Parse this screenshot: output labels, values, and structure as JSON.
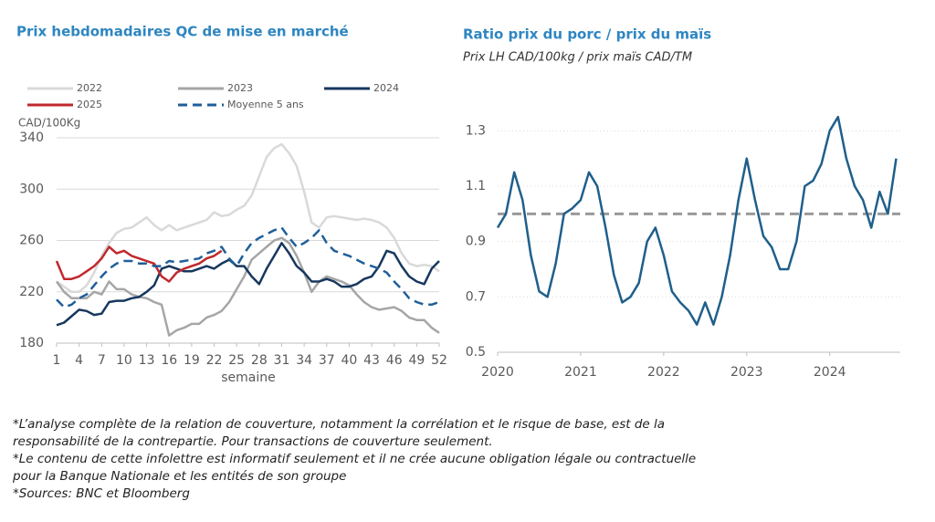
{
  "chart_data": [
    {
      "type": "line",
      "title": "Prix hebdomadaires QC de mise en marché",
      "y_label": "CAD/100Kg",
      "x_label": "semaine",
      "x": [
        1,
        2,
        3,
        4,
        5,
        6,
        7,
        8,
        9,
        10,
        11,
        12,
        13,
        14,
        15,
        16,
        17,
        18,
        19,
        20,
        21,
        22,
        23,
        24,
        25,
        26,
        27,
        28,
        29,
        30,
        31,
        32,
        33,
        34,
        35,
        36,
        37,
        38,
        39,
        40,
        41,
        42,
        43,
        44,
        45,
        46,
        47,
        48,
        49,
        50,
        51,
        52
      ],
      "xlim": [
        1,
        52
      ],
      "xticks": [
        1,
        4,
        7,
        10,
        13,
        16,
        19,
        22,
        25,
        28,
        31,
        34,
        37,
        40,
        43,
        46,
        49,
        52
      ],
      "ylim": [
        180,
        340
      ],
      "yticks": [
        180,
        220,
        260,
        300,
        340
      ],
      "grid": true,
      "series": [
        {
          "name": "2022",
          "color": "#d9d9d9",
          "dashed": false,
          "values": [
            228,
            224,
            220,
            220,
            225,
            235,
            248,
            258,
            266,
            269,
            270,
            274,
            278,
            272,
            268,
            272,
            268,
            270,
            272,
            274,
            276,
            282,
            279,
            280,
            284,
            287,
            295,
            310,
            325,
            332,
            335,
            328,
            318,
            298,
            274,
            270,
            278,
            279,
            278,
            277,
            276,
            277,
            276,
            274,
            270,
            262,
            250,
            242,
            240,
            241,
            240,
            236
          ]
        },
        {
          "name": "2023",
          "color": "#a6a6a6",
          "dashed": false,
          "values": [
            228,
            220,
            215,
            215,
            215,
            220,
            218,
            228,
            222,
            222,
            218,
            216,
            215,
            212,
            210,
            186,
            190,
            192,
            195,
            195,
            200,
            202,
            205,
            212,
            222,
            232,
            245,
            250,
            255,
            260,
            262,
            258,
            248,
            235,
            220,
            228,
            232,
            230,
            228,
            225,
            218,
            212,
            208,
            206,
            207,
            208,
            205,
            200,
            198,
            198,
            192,
            188
          ]
        },
        {
          "name": "2024",
          "color": "#17375e",
          "dashed": false,
          "values": [
            194,
            196,
            201,
            206,
            205,
            202,
            203,
            212,
            213,
            213,
            215,
            216,
            220,
            225,
            238,
            240,
            238,
            236,
            236,
            238,
            240,
            238,
            242,
            245,
            240,
            240,
            232,
            226,
            238,
            248,
            258,
            250,
            240,
            235,
            228,
            228,
            230,
            228,
            224,
            224,
            226,
            230,
            232,
            240,
            252,
            250,
            240,
            232,
            228,
            226,
            238,
            244
          ]
        },
        {
          "name": "2025",
          "color": "#c0282d",
          "dashed": false,
          "values": [
            244,
            230,
            230,
            232,
            236,
            240,
            246,
            255,
            250,
            252,
            248,
            246,
            244,
            242,
            232,
            228,
            235,
            238,
            240,
            242,
            246,
            248,
            252,
            null,
            null,
            null,
            null,
            null,
            null,
            null,
            null,
            null,
            null,
            null,
            null,
            null,
            null,
            null,
            null,
            null,
            null,
            null,
            null,
            null,
            null,
            null,
            null,
            null,
            null,
            null,
            null,
            null
          ]
        },
        {
          "name": "Moyenne 5 ans",
          "color": "#1f5f99",
          "dashed": true,
          "values": [
            214,
            208,
            210,
            215,
            218,
            225,
            232,
            238,
            242,
            244,
            244,
            242,
            242,
            240,
            240,
            244,
            243,
            244,
            245,
            246,
            250,
            252,
            255,
            246,
            240,
            250,
            258,
            262,
            265,
            268,
            270,
            262,
            255,
            258,
            262,
            268,
            258,
            252,
            250,
            248,
            245,
            242,
            240,
            238,
            235,
            228,
            222,
            215,
            212,
            210,
            210,
            212
          ]
        }
      ]
    },
    {
      "type": "line",
      "title": "Ratio prix du porc / prix du maïs",
      "subtitle": "Prix LH CAD/100kg / prix maïs CAD/TM",
      "x": [
        2020.0,
        2020.1,
        2020.2,
        2020.3,
        2020.4,
        2020.5,
        2020.6,
        2020.7,
        2020.8,
        2020.9,
        2021.0,
        2021.1,
        2021.2,
        2021.3,
        2021.4,
        2021.5,
        2021.6,
        2021.7,
        2021.8,
        2021.9,
        2022.0,
        2022.1,
        2022.2,
        2022.3,
        2022.4,
        2022.5,
        2022.6,
        2022.7,
        2022.8,
        2022.9,
        2023.0,
        2023.1,
        2023.2,
        2023.3,
        2023.4,
        2023.5,
        2023.6,
        2023.7,
        2023.8,
        2023.9,
        2024.0,
        2024.1,
        2024.2,
        2024.3,
        2024.4,
        2024.5,
        2024.6,
        2024.7,
        2024.8
      ],
      "values": [
        0.95,
        1.0,
        1.15,
        1.05,
        0.85,
        0.72,
        0.7,
        0.82,
        1.0,
        1.02,
        1.05,
        1.15,
        1.1,
        0.95,
        0.78,
        0.68,
        0.7,
        0.75,
        0.9,
        0.95,
        0.85,
        0.72,
        0.68,
        0.65,
        0.6,
        0.68,
        0.6,
        0.7,
        0.85,
        1.05,
        1.2,
        1.05,
        0.92,
        0.88,
        0.8,
        0.8,
        0.9,
        1.1,
        1.12,
        1.18,
        1.3,
        1.35,
        1.2,
        1.1,
        1.05,
        0.95,
        1.08,
        1.0,
        1.2
      ],
      "color": "#1f5f8b",
      "xlim": [
        2020,
        2024.85
      ],
      "xticks": [
        2020,
        2021,
        2022,
        2023,
        2024
      ],
      "ylim": [
        0.5,
        1.4
      ],
      "yticks": [
        0.5,
        0.7,
        0.9,
        1.1,
        1.3
      ],
      "grid": true,
      "reference_line": {
        "value": 1.0,
        "color": "#999999"
      }
    }
  ],
  "notes": [
    "*L’analyse complète de la relation de couverture, notamment la corrélation et le risque de base, est de la",
    "responsabilité de la contrepartie. Pour transactions de couverture seulement.",
    "*Le contenu de cette infolettre est informatif seulement et il ne crée aucune obligation légale ou contractuelle",
    "pour la Banque Nationale et les entités de son groupe",
    "*Sources: BNC et Bloomberg"
  ]
}
